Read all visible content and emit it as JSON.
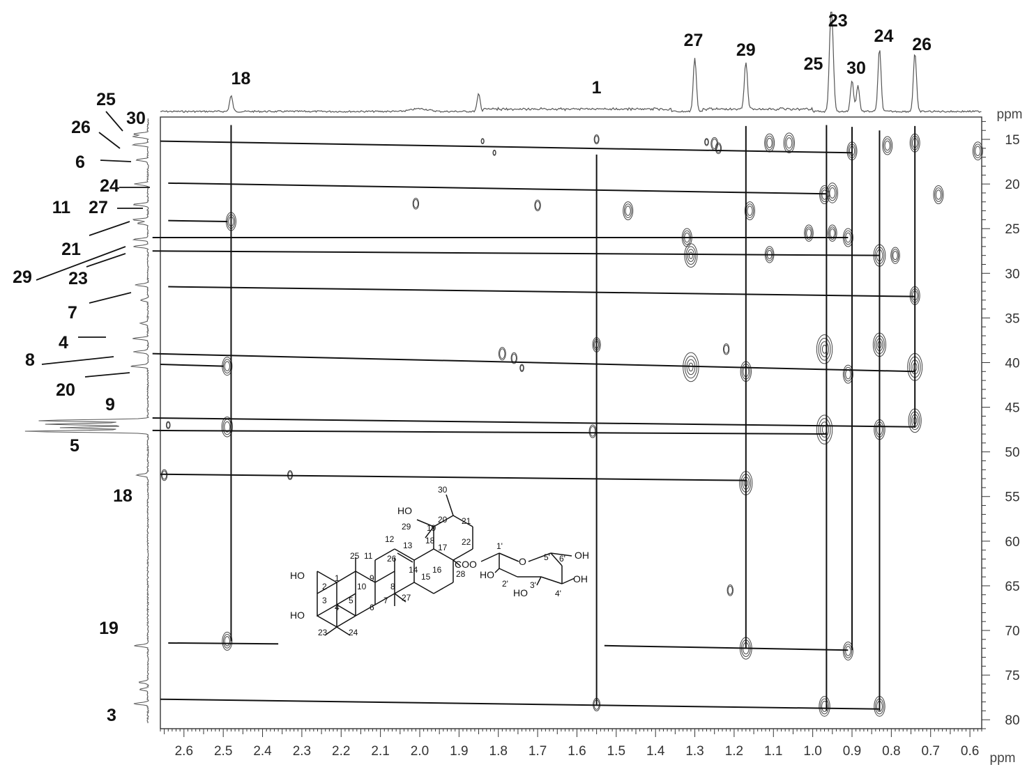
{
  "chart_data": {
    "type": "2D NMR correlation spectrum",
    "x_axis": {
      "unit": "ppm",
      "reversed": true,
      "range": [
        2.66,
        0.57
      ],
      "ticks": [
        "2.6",
        "2.5",
        "2.4",
        "2.3",
        "2.2",
        "2.1",
        "2.0",
        "1.9",
        "1.8",
        "1.7",
        "1.6",
        "1.5",
        "1.4",
        "1.3",
        "1.2",
        "1.1",
        "1.0",
        "0.9",
        "0.8",
        "0.7",
        "0.6"
      ]
    },
    "y_axis": {
      "unit": "ppm",
      "range": [
        12.5,
        81
      ],
      "ticks": [
        "15",
        "20",
        "25",
        "30",
        "35",
        "40",
        "45",
        "50",
        "55",
        "60",
        "65",
        "70",
        "75",
        "80"
      ]
    },
    "top_peak_labels": [
      {
        "label": "18",
        "ppm": 2.48
      },
      {
        "label": "1",
        "ppm": 1.55
      },
      {
        "label": "27",
        "ppm": 1.3
      },
      {
        "label": "29",
        "ppm": 1.17
      },
      {
        "label": "25",
        "ppm": 0.97
      },
      {
        "label": "23",
        "ppm": 0.95
      },
      {
        "label": "30",
        "ppm": 0.9
      },
      {
        "label": "24",
        "ppm": 0.83
      },
      {
        "label": "26",
        "ppm": 0.74
      }
    ],
    "left_carbon_labels": [
      {
        "label": "25",
        "ppm": 14.7
      },
      {
        "label": "26",
        "ppm": 15.6
      },
      {
        "label": "30",
        "ppm": 14.4
      },
      {
        "label": "6",
        "ppm": 17.3
      },
      {
        "label": "24",
        "ppm": 20.0
      },
      {
        "label": "11",
        "ppm": 22.3
      },
      {
        "label": "27",
        "ppm": 22.3
      },
      {
        "label": "21",
        "ppm": 24.0
      },
      {
        "label": "29",
        "ppm": 26.2
      },
      {
        "label": "23",
        "ppm": 27.0
      },
      {
        "label": "7",
        "ppm": 31.3
      },
      {
        "label": "4",
        "ppm": 37.3
      },
      {
        "label": "8",
        "ppm": 38.8
      },
      {
        "label": "20",
        "ppm": 40.4
      },
      {
        "label": "9",
        "ppm": 46.5
      },
      {
        "label": "5",
        "ppm": 47.7
      },
      {
        "label": "18",
        "ppm": 52.6
      },
      {
        "label": "19",
        "ppm": 71.7
      },
      {
        "label": "3",
        "ppm": 78.2
      }
    ],
    "top_projection_peaks": [
      {
        "ppm": 2.48,
        "height": 0.18
      },
      {
        "ppm": 1.85,
        "height": 0.2
      },
      {
        "ppm": 1.3,
        "height": 0.62
      },
      {
        "ppm": 1.17,
        "height": 0.55
      },
      {
        "ppm": 0.955,
        "height": 0.75
      },
      {
        "ppm": 0.95,
        "height": 0.7
      },
      {
        "ppm": 0.9,
        "height": 0.36
      },
      {
        "ppm": 0.885,
        "height": 0.3
      },
      {
        "ppm": 0.83,
        "height": 0.72
      },
      {
        "ppm": 0.74,
        "height": 0.68
      }
    ],
    "left_projection_peaks": [
      {
        "ppm": 14.4,
        "height": 0.1
      },
      {
        "ppm": 14.7,
        "height": 0.1
      },
      {
        "ppm": 15.6,
        "height": 0.1
      },
      {
        "ppm": 17.3,
        "height": 0.08
      },
      {
        "ppm": 20.0,
        "height": 0.09
      },
      {
        "ppm": 22.3,
        "height": 0.1
      },
      {
        "ppm": 24.0,
        "height": 0.1
      },
      {
        "ppm": 24.4,
        "height": 0.07
      },
      {
        "ppm": 26.2,
        "height": 0.1
      },
      {
        "ppm": 27.0,
        "height": 0.1
      },
      {
        "ppm": 31.3,
        "height": 0.09
      },
      {
        "ppm": 33.0,
        "height": 0.05
      },
      {
        "ppm": 35.6,
        "height": 0.05
      },
      {
        "ppm": 37.3,
        "height": 0.1
      },
      {
        "ppm": 38.8,
        "height": 0.1
      },
      {
        "ppm": 40.4,
        "height": 0.12
      },
      {
        "ppm": 46.5,
        "height": 0.75
      },
      {
        "ppm": 46.9,
        "height": 0.7
      },
      {
        "ppm": 47.3,
        "height": 0.6
      },
      {
        "ppm": 47.7,
        "height": 0.85
      },
      {
        "ppm": 52.6,
        "height": 0.08
      },
      {
        "ppm": 71.7,
        "height": 0.09
      },
      {
        "ppm": 75.8,
        "height": 0.06
      },
      {
        "ppm": 76.6,
        "height": 0.06
      },
      {
        "ppm": 78.2,
        "height": 0.1
      }
    ],
    "cross_peaks": [
      {
        "x": 2.48,
        "y": 24.2,
        "s": 1
      },
      {
        "x": 2.49,
        "y": 40.4,
        "s": 1
      },
      {
        "x": 2.49,
        "y": 47.2,
        "s": 1.1
      },
      {
        "x": 2.49,
        "y": 71.2,
        "s": 1
      },
      {
        "x": 2.65,
        "y": 52.6,
        "s": 0.6
      },
      {
        "x": 2.33,
        "y": 52.6,
        "s": 0.5
      },
      {
        "x": 2.64,
        "y": 47.0,
        "s": 0.4
      },
      {
        "x": 1.84,
        "y": 15.2,
        "s": 0.3
      },
      {
        "x": 1.81,
        "y": 16.5,
        "s": 0.3
      },
      {
        "x": 2.01,
        "y": 22.2,
        "s": 0.6
      },
      {
        "x": 1.7,
        "y": 22.4,
        "s": 0.6
      },
      {
        "x": 1.55,
        "y": 15.0,
        "s": 0.5
      },
      {
        "x": 1.47,
        "y": 23.0,
        "s": 1
      },
      {
        "x": 1.55,
        "y": 38.0,
        "s": 0.8
      },
      {
        "x": 1.79,
        "y": 39.0,
        "s": 0.7
      },
      {
        "x": 1.76,
        "y": 39.5,
        "s": 0.6
      },
      {
        "x": 1.74,
        "y": 40.6,
        "s": 0.4
      },
      {
        "x": 1.56,
        "y": 47.7,
        "s": 0.7
      },
      {
        "x": 1.55,
        "y": 78.3,
        "s": 0.7
      },
      {
        "x": 1.32,
        "y": 26.0,
        "s": 1
      },
      {
        "x": 1.31,
        "y": 28.0,
        "s": 1.3
      },
      {
        "x": 1.31,
        "y": 40.5,
        "s": 1.6
      },
      {
        "x": 1.22,
        "y": 38.5,
        "s": 0.6
      },
      {
        "x": 1.27,
        "y": 15.3,
        "s": 0.4
      },
      {
        "x": 1.25,
        "y": 15.5,
        "s": 0.7
      },
      {
        "x": 1.24,
        "y": 16.0,
        "s": 0.6
      },
      {
        "x": 1.16,
        "y": 23.0,
        "s": 1
      },
      {
        "x": 1.11,
        "y": 15.4,
        "s": 1
      },
      {
        "x": 1.06,
        "y": 15.4,
        "s": 1.1
      },
      {
        "x": 1.11,
        "y": 27.9,
        "s": 0.9
      },
      {
        "x": 1.17,
        "y": 41.0,
        "s": 1.1
      },
      {
        "x": 1.17,
        "y": 53.5,
        "s": 1.3
      },
      {
        "x": 1.17,
        "y": 72.0,
        "s": 1.2
      },
      {
        "x": 1.21,
        "y": 65.5,
        "s": 0.6
      },
      {
        "x": 1.01,
        "y": 25.5,
        "s": 0.9
      },
      {
        "x": 0.97,
        "y": 21.2,
        "s": 1
      },
      {
        "x": 0.95,
        "y": 21.0,
        "s": 1.1
      },
      {
        "x": 0.95,
        "y": 25.5,
        "s": 0.9
      },
      {
        "x": 0.97,
        "y": 38.5,
        "s": 1.6
      },
      {
        "x": 0.97,
        "y": 47.5,
        "s": 1.6
      },
      {
        "x": 0.97,
        "y": 78.5,
        "s": 1.1
      },
      {
        "x": 0.9,
        "y": 16.3,
        "s": 1
      },
      {
        "x": 0.91,
        "y": 26.0,
        "s": 1
      },
      {
        "x": 0.91,
        "y": 41.3,
        "s": 1
      },
      {
        "x": 0.91,
        "y": 72.3,
        "s": 1
      },
      {
        "x": 0.83,
        "y": 28.0,
        "s": 1.2
      },
      {
        "x": 0.79,
        "y": 28.0,
        "s": 0.9
      },
      {
        "x": 0.83,
        "y": 38.0,
        "s": 1.3
      },
      {
        "x": 0.83,
        "y": 47.5,
        "s": 1.1
      },
      {
        "x": 0.83,
        "y": 78.5,
        "s": 1.1
      },
      {
        "x": 0.81,
        "y": 15.7,
        "s": 1
      },
      {
        "x": 0.74,
        "y": 15.4,
        "s": 1
      },
      {
        "x": 0.74,
        "y": 32.5,
        "s": 1
      },
      {
        "x": 0.74,
        "y": 40.5,
        "s": 1.5
      },
      {
        "x": 0.74,
        "y": 46.5,
        "s": 1.3
      },
      {
        "x": 0.68,
        "y": 21.2,
        "s": 1
      },
      {
        "x": 0.58,
        "y": 16.3,
        "s": 1
      }
    ],
    "vertical_lines": [
      {
        "x": 2.48,
        "y1": 13.4,
        "y2": 71.2
      },
      {
        "x": 1.55,
        "y1": 16.7,
        "y2": 78.3
      },
      {
        "x": 1.17,
        "y1": 13.5,
        "y2": 72.0
      },
      {
        "x": 0.965,
        "y1": 13.4,
        "y2": 79.0
      },
      {
        "x": 0.9,
        "y1": 13.6,
        "y2": 72.2
      },
      {
        "x": 0.83,
        "y1": 14.0,
        "y2": 79.0
      },
      {
        "x": 0.74,
        "y1": 13.5,
        "y2": 47.3
      }
    ],
    "horizontal_lines": [
      {
        "x1": 2.66,
        "y1": 15.2,
        "x2": 0.9,
        "y2": 16.5
      },
      {
        "x1": 2.64,
        "y1": 19.9,
        "x2": 0.965,
        "y2": 21.1
      },
      {
        "x1": 2.64,
        "y1": 24.1,
        "x2": 2.49,
        "y2": 24.2
      },
      {
        "x1": 2.68,
        "y1": 26.0,
        "x2": 0.91,
        "y2": 26.0
      },
      {
        "x1": 2.68,
        "y1": 27.5,
        "x2": 0.83,
        "y2": 28.0
      },
      {
        "x1": 2.64,
        "y1": 31.5,
        "x2": 0.74,
        "y2": 32.6
      },
      {
        "x1": 2.68,
        "y1": 39.0,
        "x2": 0.74,
        "y2": 41.0
      },
      {
        "x1": 2.66,
        "y1": 40.2,
        "x2": 2.5,
        "y2": 40.4
      },
      {
        "x1": 2.68,
        "y1": 46.2,
        "x2": 0.74,
        "y2": 47.2
      },
      {
        "x1": 2.68,
        "y1": 47.6,
        "x2": 0.965,
        "y2": 48.0
      },
      {
        "x1": 2.66,
        "y1": 52.5,
        "x2": 1.17,
        "y2": 53.2
      },
      {
        "x1": 2.64,
        "y1": 71.4,
        "x2": 2.36,
        "y2": 71.5
      },
      {
        "x1": 1.53,
        "y1": 71.7,
        "x2": 0.91,
        "y2": 72.2
      },
      {
        "x1": 2.66,
        "y1": 77.7,
        "x2": 0.83,
        "y2": 78.8
      }
    ]
  },
  "structure_labels": {
    "ho_top": "HO",
    "ho_left2": "HO",
    "ho_left3": "HO",
    "coo": "COO",
    "o_ring": "O",
    "oh_top": "OH",
    "oh_right": "OH",
    "ho_bottom": "HO",
    "ho_2p": "HO",
    "n1": "1",
    "n2": "2",
    "n3": "3",
    "n4": "4",
    "n5": "5",
    "n6": "6",
    "n7": "7",
    "n8": "8",
    "n9": "9",
    "n10": "10",
    "n11": "11",
    "n12": "12",
    "n13": "13",
    "n14": "14",
    "n15": "15",
    "n16": "16",
    "n17": "17",
    "n18": "18",
    "n19": "19",
    "n20": "20",
    "n21": "21",
    "n22": "22",
    "n23": "23",
    "n24": "24",
    "n25": "25",
    "n26": "26",
    "n27": "27",
    "n28": "28",
    "n29": "29",
    "n30": "30",
    "p1": "1'",
    "p2": "2'",
    "p3": "3'",
    "p4": "4'",
    "p5": "5'",
    "p6": "6'"
  },
  "colors": {
    "line": "#111111",
    "contour": "#444444",
    "axis": "#333333",
    "projection": "#555555"
  }
}
